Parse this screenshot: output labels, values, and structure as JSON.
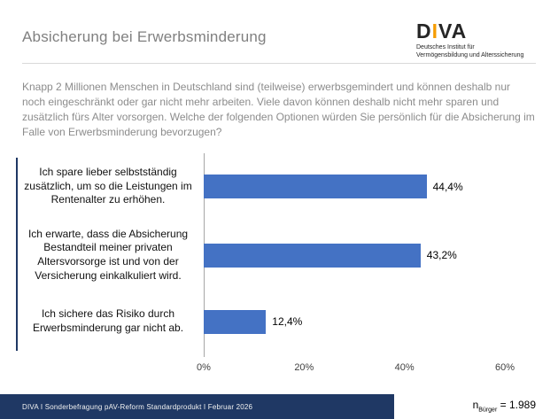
{
  "header": {
    "title": "Absicherung bei Erwerbsminderung",
    "logo": {
      "word_d": "D",
      "word_i": "I",
      "word_va": "VA",
      "subtitle_line1": "Deutsches Institut für",
      "subtitle_line2": "Vermögensbildung und Alterssicherung"
    }
  },
  "intro_text": "Knapp 2 Millionen Menschen in Deutschland sind (teilweise) erwerbsgemindert und können deshalb nur noch eingeschränkt oder gar nicht mehr arbeiten. Viele davon können deshalb nicht mehr sparen und zusätzlich fürs Alter vorsorgen. Welche der folgenden Optionen würden Sie persönlich für die Absicherung im Falle von Erwerbsminderung bevorzugen?",
  "chart_data": {
    "type": "bar",
    "orientation": "horizontal",
    "categories": [
      "Ich spare lieber selbstständig zusätzlich, um so die Leistungen im Rentenalter zu erhöhen.",
      "Ich erwarte, dass die Absicherung Bestandteil meiner privaten Altersvorsorge ist und von der Versicherung einkalkuliert wird.",
      "Ich sichere das Risiko durch Erwerbsminderung gar nicht ab."
    ],
    "values": [
      44.4,
      43.2,
      12.4
    ],
    "value_labels": [
      "44,4%",
      "43,2%",
      "12,4%"
    ],
    "x_ticks": [
      "0%",
      "20%",
      "40%",
      "60%"
    ],
    "xlim": [
      0,
      60
    ],
    "grid": false,
    "legend": false,
    "bar_color": "#4472c4",
    "accent_color": "#1f3864"
  },
  "footer": {
    "source": "DIVA I Sonderbefragung pAV-Reform Standardprodukt I Februar 2026",
    "n_symbol": "n",
    "n_subscript": "Bürger",
    "n_value": " = 1.989"
  }
}
